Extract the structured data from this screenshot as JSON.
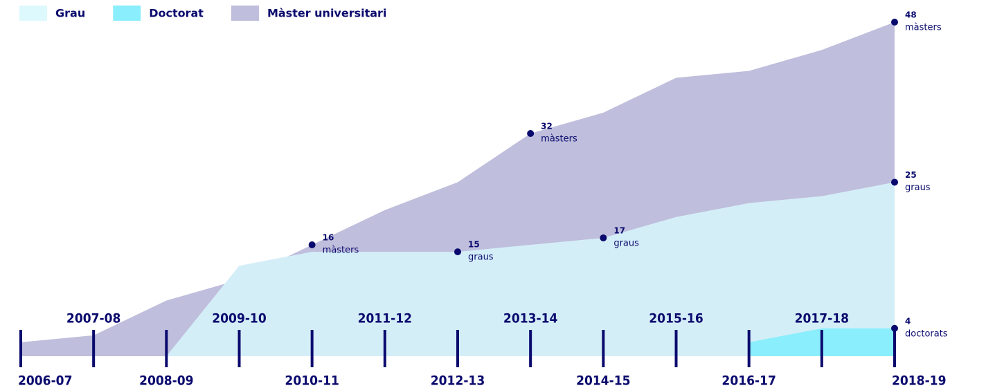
{
  "chart_data": {
    "type": "area",
    "categories": [
      "2006-07",
      "2007-08",
      "2008-09",
      "2009-10",
      "2010-11",
      "2011-12",
      "2012-13",
      "2013-14",
      "2014-15",
      "2015-16",
      "2016-17",
      "2017-18",
      "2018-19"
    ],
    "series": [
      {
        "name": "Grau",
        "color": "#d4eef8",
        "legend_color": "#ddf9fd",
        "values": [
          null,
          null,
          0,
          13,
          15,
          15,
          15,
          16,
          17,
          20,
          22,
          23,
          25
        ]
      },
      {
        "name": "Doctorat",
        "color": "#8aeefc",
        "values": [
          null,
          null,
          null,
          null,
          null,
          null,
          null,
          null,
          null,
          null,
          2,
          4,
          4
        ]
      },
      {
        "name": "Màster universitari",
        "color": "#bfbedc",
        "values": [
          2,
          3,
          8,
          11,
          16,
          21,
          25,
          32,
          35,
          40,
          41,
          44,
          48
        ]
      }
    ],
    "annotations": [
      {
        "x": "2010-11",
        "value": 16,
        "label": "màsters"
      },
      {
        "x": "2012-13",
        "value": 15,
        "label": "graus"
      },
      {
        "x": "2013-14",
        "value": 32,
        "label": "màsters"
      },
      {
        "x": "2014-15",
        "value": 17,
        "label": "graus"
      },
      {
        "x": "2018-19",
        "value": 48,
        "label": "màsters"
      },
      {
        "x": "2018-19",
        "value": 25,
        "label": "graus"
      },
      {
        "x": "2018-19",
        "value": 4,
        "label": "doctorats"
      }
    ],
    "ylim": [
      0,
      48
    ],
    "legend": "top-left"
  }
}
